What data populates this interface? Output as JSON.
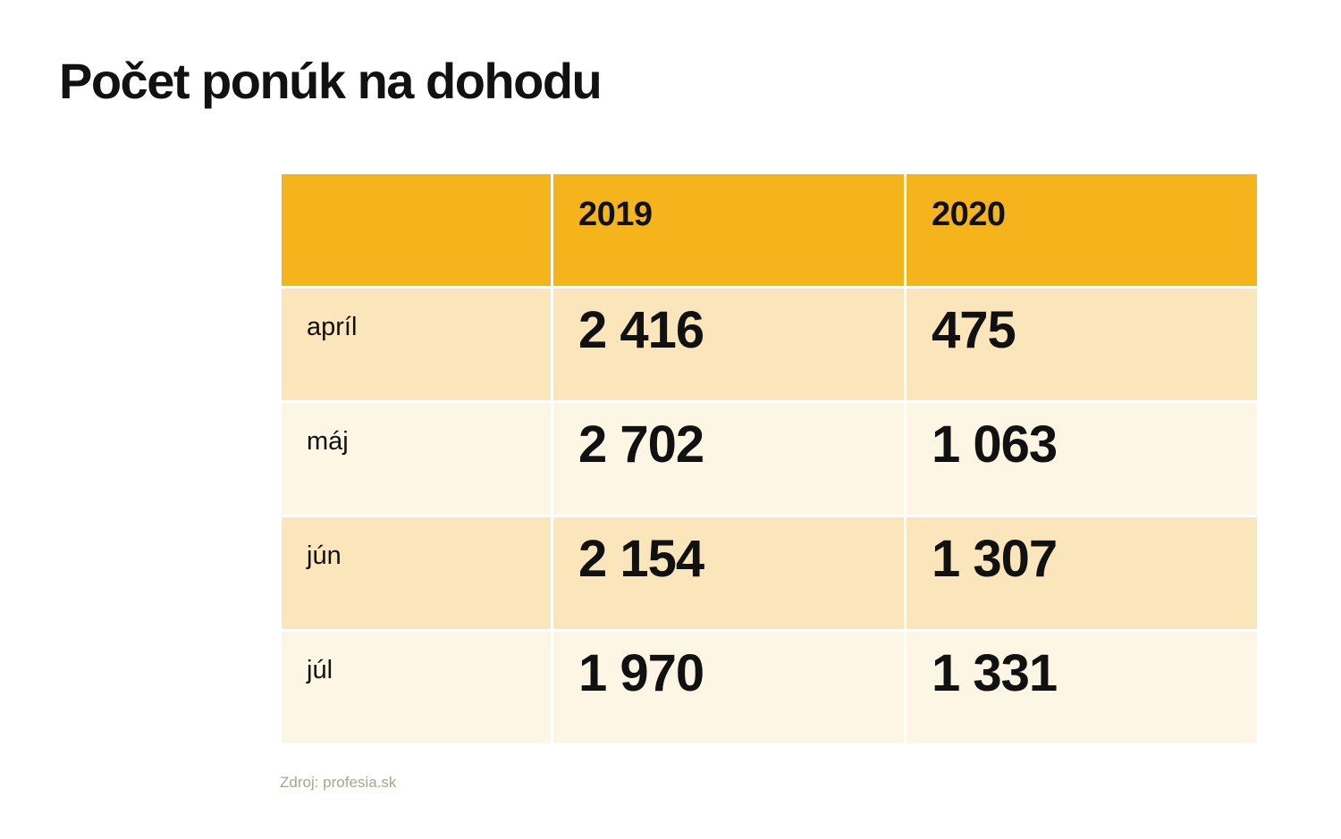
{
  "page": {
    "title": "Počet ponúk na dohodu",
    "source_note": "Zdroj: profesia.sk"
  },
  "colors": {
    "header_bg": "#F5B31C",
    "row_bg_odd": "#FAE6BA",
    "row_bg_even": "#FDF6E4",
    "text": "#111111",
    "source_text": "#ACA492",
    "page_bg": "#FFFFFF"
  },
  "chart_data": {
    "type": "table",
    "title": "Počet ponúk na dohodu",
    "columns": [
      "",
      "2019",
      "2020"
    ],
    "rows": [
      {
        "label": "apríl",
        "y2019": "2 416",
        "y2020": "475"
      },
      {
        "label": "máj",
        "y2019": "2 702",
        "y2020": "1 063"
      },
      {
        "label": "jún",
        "y2019": "2 154",
        "y2020": "1 307"
      },
      {
        "label": "júl",
        "y2019": "1 970",
        "y2020": "1 331"
      }
    ],
    "numeric": {
      "categories": [
        "apríl",
        "máj",
        "jún",
        "júl"
      ],
      "series": [
        {
          "name": "2019",
          "values": [
            2416,
            2702,
            2154,
            1970
          ]
        },
        {
          "name": "2020",
          "values": [
            475,
            1063,
            1307,
            1331
          ]
        }
      ]
    },
    "source": "Zdroj: profesia.sk"
  }
}
